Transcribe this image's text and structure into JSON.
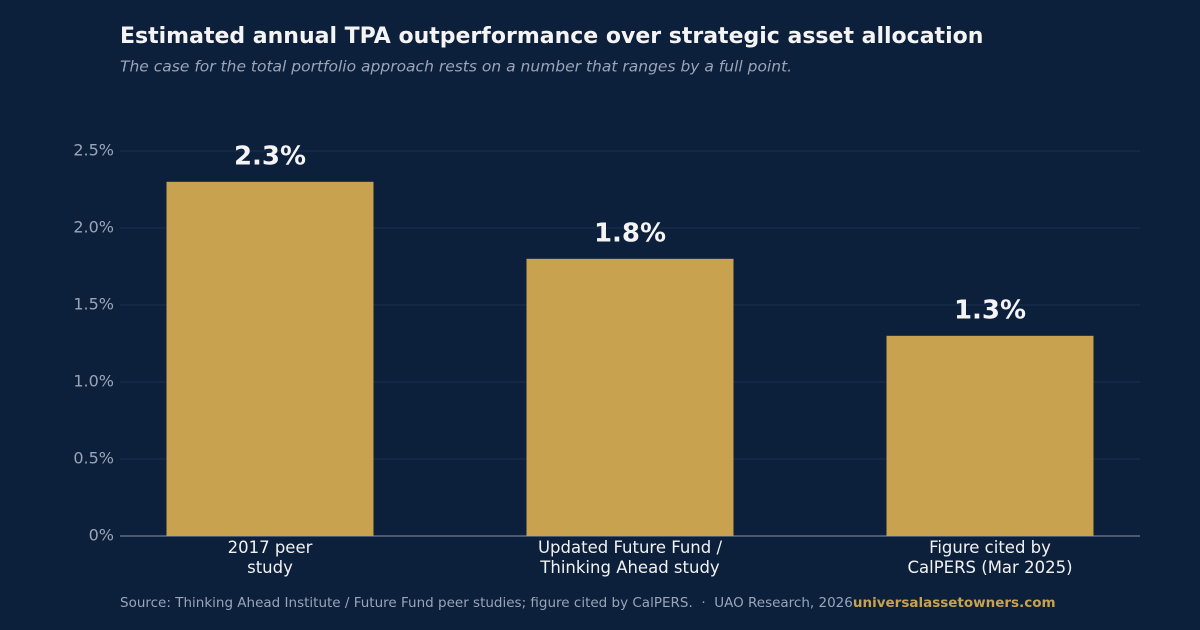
{
  "chart_data": {
    "type": "bar",
    "title": "Estimated annual TPA outperformance over strategic asset allocation",
    "subtitle": "The case for the total portfolio approach rests on a number that ranges by a full point.",
    "categories": [
      "2017 peer\nstudy",
      "Updated Future Fund /\nThinking Ahead study",
      "Figure cited by\nCalPERS (Mar 2025)"
    ],
    "values": [
      2.3,
      1.8,
      1.3
    ],
    "value_labels": [
      "2.3%",
      "1.8%",
      "1.3%"
    ],
    "color": "#c9a24f",
    "ylim": [
      0,
      2.5
    ],
    "yticks": [
      {
        "value": 0,
        "label": "0%"
      },
      {
        "value": 0.5,
        "label": "0.5%"
      },
      {
        "value": 1.0,
        "label": "1.0%"
      },
      {
        "value": 1.5,
        "label": "1.5%"
      },
      {
        "value": 2.0,
        "label": "2.0%"
      },
      {
        "value": 2.5,
        "label": "2.5%"
      }
    ],
    "grid": true,
    "source": "Source: Thinking Ahead Institute / Future Fund peer studies; figure cited by CalPERS.  ·  UAO Research, 2026",
    "brand": "universalassetowners.com"
  }
}
